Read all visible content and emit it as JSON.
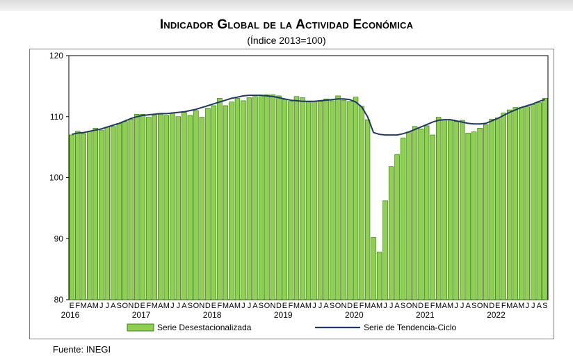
{
  "title": "Indicador Global de la Actividad Económica",
  "subtitle": "(Índice 2013=100)",
  "source": "Fuente: INEGI",
  "chart_data": {
    "type": "bar",
    "y_axis": {
      "min": 80,
      "max": 120,
      "ticks": [
        80,
        90,
        100,
        110,
        120
      ]
    },
    "grid": false,
    "legend_position": "bottom",
    "month_labels": [
      "E",
      "F",
      "M",
      "A",
      "M",
      "J",
      "J",
      "A",
      "S",
      "O",
      "N",
      "D"
    ],
    "years": [
      "2016",
      "2017",
      "2018",
      "2019",
      "2020",
      "2021",
      "2022"
    ],
    "colors": {
      "bar_fill": "#8fd14f",
      "bar_edge": "#1f6a00",
      "trend_line": "#1f3864",
      "axis": "#000000"
    },
    "series": [
      {
        "name": "Serie Desestacionalizada",
        "type": "bar",
        "values": [
          107.0,
          107.6,
          107.2,
          107.6,
          108.1,
          107.8,
          108.3,
          108.4,
          108.9,
          109.2,
          109.6,
          110.4,
          110.4,
          109.9,
          110.2,
          110.4,
          110.2,
          110.6,
          110.0,
          110.7,
          110.2,
          111.0,
          109.9,
          111.4,
          111.8,
          113.0,
          111.8,
          112.4,
          113.0,
          112.6,
          113.1,
          113.3,
          113.3,
          113.6,
          113.6,
          113.4,
          112.8,
          112.5,
          113.3,
          113.1,
          112.4,
          112.5,
          112.5,
          112.9,
          112.6,
          113.4,
          112.7,
          112.5,
          113.2,
          111.7,
          109.5,
          90.2,
          87.8,
          96.2,
          101.8,
          103.8,
          106.5,
          107.5,
          108.4,
          108.0,
          108.5,
          107.0,
          109.9,
          109.5,
          109.5,
          109.2,
          109.4,
          107.3,
          107.5,
          108.1,
          108.7,
          109.6,
          109.8,
          110.6,
          111.1,
          111.5,
          111.5,
          111.6,
          112.0,
          112.3,
          113.0
        ]
      },
      {
        "name": "Serie de Tendencia-Ciclo",
        "type": "line",
        "values": [
          107.1,
          107.3,
          107.4,
          107.6,
          107.8,
          108.0,
          108.3,
          108.6,
          108.9,
          109.3,
          109.7,
          110.0,
          110.2,
          110.3,
          110.4,
          110.5,
          110.5,
          110.6,
          110.7,
          110.8,
          111.0,
          111.2,
          111.5,
          111.8,
          112.1,
          112.4,
          112.7,
          113.0,
          113.2,
          113.4,
          113.5,
          113.5,
          113.5,
          113.4,
          113.3,
          113.1,
          112.9,
          112.7,
          112.6,
          112.5,
          112.5,
          112.5,
          112.6,
          112.7,
          112.8,
          112.9,
          112.9,
          112.8,
          112.4,
          111.6,
          110.0,
          107.4,
          107.1,
          107.0,
          107.0,
          107.0,
          107.2,
          107.5,
          107.9,
          108.3,
          108.7,
          109.1,
          109.4,
          109.5,
          109.5,
          109.3,
          109.1,
          108.9,
          108.8,
          108.8,
          108.9,
          109.3,
          109.7,
          110.2,
          110.7,
          111.1,
          111.5,
          111.8,
          112.1,
          112.5,
          112.8
        ]
      }
    ]
  }
}
